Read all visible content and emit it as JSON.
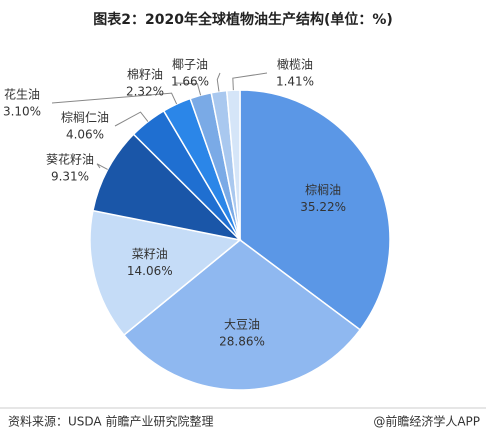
{
  "chart_data": {
    "type": "pie",
    "title": "图表2：2020年全球植物油生产结构(单位：%)",
    "categories": [
      "棕榈油",
      "大豆油",
      "菜籽油",
      "葵花籽油",
      "棕榈仁油",
      "花生油",
      "棉籽油",
      "椰子油",
      "橄榄油"
    ],
    "values": [
      35.22,
      28.86,
      14.06,
      9.31,
      4.06,
      3.1,
      2.32,
      1.66,
      1.41
    ],
    "value_labels": [
      "35.22%",
      "28.86%",
      "14.06%",
      "9.31%",
      "4.06%",
      "3.10%",
      "2.32%",
      "1.66%",
      "1.41%"
    ],
    "colors": [
      "#5b97e6",
      "#8fb8f0",
      "#c5dcf7",
      "#1a56a8",
      "#1f6fd1",
      "#2b86e8",
      "#7aaae6",
      "#a9c8ef",
      "#d5e5f8"
    ]
  },
  "source": "资料来源：USDA 前瞻产业研究院整理",
  "credit": "@前瞻经济学人APP"
}
